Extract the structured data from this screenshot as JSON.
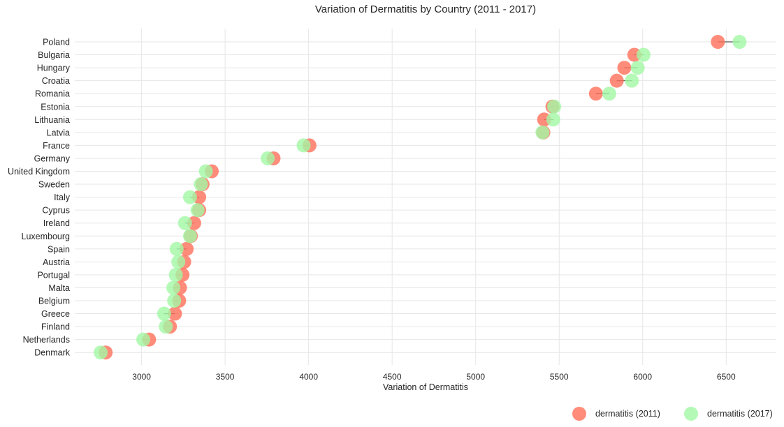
{
  "chart_data": {
    "type": "scatter",
    "title": "Variation of Dermatitis by Country (2011 - 2017)",
    "xlabel": "Variation of Dermatitis",
    "ylabel": "",
    "xlim": [
      2600,
      6800
    ],
    "xticks": [
      3000,
      3500,
      4000,
      4500,
      5000,
      5500,
      6000,
      6500
    ],
    "grid": true,
    "legend": "bottom-right",
    "colors": {
      "dermatitis_2011": "#ff6f59",
      "dermatitis_2017": "#a3f7a5",
      "connector": "#555555",
      "grid": "#e6e6e6"
    },
    "categories": [
      "Poland",
      "Bulgaria",
      "Hungary",
      "Croatia",
      "Romania",
      "Estonia",
      "Lithuania",
      "Latvia",
      "France",
      "Germany",
      "United Kingdom",
      "Sweden",
      "Italy",
      "Cyprus",
      "Ireland",
      "Luxembourg",
      "Spain",
      "Austria",
      "Portugal",
      "Malta",
      "Belgium",
      "Greece",
      "Finland",
      "Netherlands",
      "Denmark"
    ],
    "series": [
      {
        "name": "dermatitis (2011)",
        "values": [
          6450,
          5950,
          5890,
          5845,
          5720,
          5460,
          5410,
          5405,
          4005,
          3790,
          3420,
          3365,
          3345,
          3345,
          3315,
          3295,
          3270,
          3255,
          3245,
          3230,
          3225,
          3200,
          3170,
          3045,
          2785
        ]
      },
      {
        "name": "dermatitis (2017)",
        "values": [
          6580,
          6005,
          5970,
          5935,
          5800,
          5470,
          5465,
          5400,
          3970,
          3755,
          3385,
          3355,
          3290,
          3335,
          3260,
          3290,
          3210,
          3220,
          3205,
          3190,
          3195,
          3135,
          3145,
          3010,
          2755
        ]
      }
    ]
  }
}
